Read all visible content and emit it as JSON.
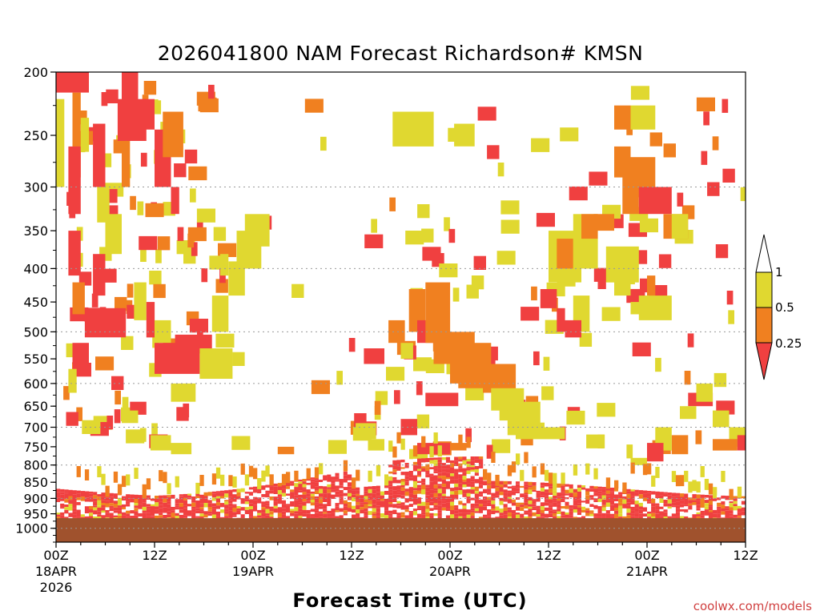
{
  "chart_data": {
    "type": "heatmap",
    "title": "2026041800 NAM Forecast Richardson# KMSN",
    "xlabel": "Forecast Time (UTC)",
    "ylabel": "Pressure (hPa)",
    "xlim_hours": [
      0,
      84
    ],
    "ylim_hpa": [
      200,
      1050
    ],
    "y_scale": "log",
    "y_ticks": [
      200,
      250,
      300,
      350,
      400,
      450,
      500,
      550,
      600,
      650,
      700,
      750,
      800,
      850,
      900,
      950,
      1000
    ],
    "dotted_gridlines_hpa": [
      300,
      400,
      500,
      600,
      700,
      800,
      900,
      1000
    ],
    "x_ticks": [
      {
        "hour": 0,
        "label": "00Z",
        "date": "18APR",
        "year": "2026"
      },
      {
        "hour": 12,
        "label": "12Z",
        "date": "",
        "year": ""
      },
      {
        "hour": 24,
        "label": "00Z",
        "date": "19APR",
        "year": ""
      },
      {
        "hour": 36,
        "label": "12Z",
        "date": "",
        "year": ""
      },
      {
        "hour": 48,
        "label": "00Z",
        "date": "20APR",
        "year": ""
      },
      {
        "hour": 60,
        "label": "12Z",
        "date": "",
        "year": ""
      },
      {
        "hour": 72,
        "label": "00Z",
        "date": "21APR",
        "year": ""
      },
      {
        "hour": 84,
        "label": "12Z",
        "date": "",
        "year": ""
      }
    ],
    "color_levels": [
      {
        "range": "< 0.25",
        "color": "#f04040"
      },
      {
        "range": "0.25 - 0.5",
        "color": "#f08020"
      },
      {
        "range": "0.5 - 1",
        "color": "#e0d830"
      },
      {
        "range": "> 1",
        "color": "#ffffff"
      }
    ],
    "colorbar_labels": [
      "1",
      "0.5",
      "0.25"
    ],
    "ground_color": "#a0522d",
    "ground_top_hpa": 965,
    "cells": [
      {
        "t": [
          0,
          4
        ],
        "p": [
          200,
          215
        ],
        "cls": 0
      },
      {
        "t": [
          8,
          10
        ],
        "p": [
          200,
          225
        ],
        "cls": 0
      },
      {
        "t": [
          2,
          3
        ],
        "p": [
          215,
          290
        ],
        "cls": 1
      },
      {
        "t": [
          0,
          1
        ],
        "p": [
          220,
          300
        ],
        "cls": 2
      },
      {
        "t": [
          1.5,
          3
        ],
        "p": [
          260,
          330
        ],
        "cls": 0
      },
      {
        "t": [
          3,
          4
        ],
        "p": [
          235,
          265
        ],
        "cls": 2
      },
      {
        "t": [
          4.5,
          6
        ],
        "p": [
          240,
          300
        ],
        "cls": 0
      },
      {
        "t": [
          5,
          6.5
        ],
        "p": [
          300,
          340
        ],
        "cls": 2
      },
      {
        "t": [
          7.5,
          11
        ],
        "p": [
          220,
          255
        ],
        "cls": 0
      },
      {
        "t": [
          8,
          9
        ],
        "p": [
          255,
          300
        ],
        "cls": 1
      },
      {
        "t": [
          10.5,
          12
        ],
        "p": [
          220,
          245
        ],
        "cls": 0
      },
      {
        "t": [
          12,
          14
        ],
        "p": [
          245,
          300
        ],
        "cls": 0
      },
      {
        "t": [
          13,
          15.5
        ],
        "p": [
          230,
          270
        ],
        "cls": 1
      },
      {
        "t": [
          14,
          15
        ],
        "p": [
          300,
          330
        ],
        "cls": 0
      },
      {
        "t": [
          1.5,
          3
        ],
        "p": [
          350,
          410
        ],
        "cls": 0
      },
      {
        "t": [
          2,
          3.5
        ],
        "p": [
          420,
          470
        ],
        "cls": 1
      },
      {
        "t": [
          3.5,
          8.5
        ],
        "p": [
          460,
          510
        ],
        "cls": 0
      },
      {
        "t": [
          4.5,
          6
        ],
        "p": [
          380,
          440
        ],
        "cls": 0
      },
      {
        "t": [
          6,
          8
        ],
        "p": [
          330,
          380
        ],
        "cls": 2
      },
      {
        "t": [
          2,
          4
        ],
        "p": [
          520,
          560
        ],
        "cls": 0
      },
      {
        "t": [
          1.5,
          2.5
        ],
        "p": [
          570,
          620
        ],
        "cls": 2
      },
      {
        "t": [
          9.5,
          11
        ],
        "p": [
          420,
          480
        ],
        "cls": 2
      },
      {
        "t": [
          11,
          12
        ],
        "p": [
          450,
          510
        ],
        "cls": 0
      },
      {
        "t": [
          12,
          14
        ],
        "p": [
          480,
          520
        ],
        "cls": 2
      },
      {
        "t": [
          12,
          17.5
        ],
        "p": [
          520,
          580
        ],
        "cls": 0
      },
      {
        "t": [
          14.5,
          19
        ],
        "p": [
          505,
          540
        ],
        "cls": 0
      },
      {
        "t": [
          17.5,
          21.5
        ],
        "p": [
          530,
          590
        ],
        "cls": 2
      },
      {
        "t": [
          19,
          21
        ],
        "p": [
          440,
          500
        ],
        "cls": 2
      },
      {
        "t": [
          21,
          23
        ],
        "p": [
          390,
          440
        ],
        "cls": 2
      },
      {
        "t": [
          22,
          25
        ],
        "p": [
          350,
          400
        ],
        "cls": 2
      },
      {
        "t": [
          23,
          26
        ],
        "p": [
          330,
          370
        ],
        "cls": 2
      },
      {
        "t": [
          20,
          21
        ],
        "p": [
          380,
          410
        ],
        "cls": 2
      },
      {
        "t": [
          14,
          17
        ],
        "p": [
          600,
          640
        ],
        "cls": 2
      },
      {
        "t": [
          9,
          11
        ],
        "p": [
          640,
          670
        ],
        "cls": 0
      },
      {
        "t": [
          8,
          10
        ],
        "p": [
          660,
          690
        ],
        "cls": 2
      },
      {
        "t": [
          11.5,
          14
        ],
        "p": [
          720,
          760
        ],
        "cls": 2
      },
      {
        "t": [
          14,
          16.5
        ],
        "p": [
          740,
          770
        ],
        "cls": 2
      },
      {
        "t": [
          27,
          29
        ],
        "p": [
          750,
          770
        ],
        "cls": 1
      },
      {
        "t": [
          41,
          46
        ],
        "p": [
          230,
          260
        ],
        "cls": 2
      },
      {
        "t": [
          48.5,
          51
        ],
        "p": [
          240,
          260
        ],
        "cls": 2
      },
      {
        "t": [
          37.5,
          40
        ],
        "p": [
          530,
          560
        ],
        "cls": 0
      },
      {
        "t": [
          40.5,
          42.5
        ],
        "p": [
          480,
          520
        ],
        "cls": 1
      },
      {
        "t": [
          42,
          43.5
        ],
        "p": [
          520,
          550
        ],
        "cls": 2
      },
      {
        "t": [
          43,
          45
        ],
        "p": [
          430,
          500
        ],
        "cls": 1
      },
      {
        "t": [
          44,
          46
        ],
        "p": [
          480,
          520
        ],
        "cls": 0
      },
      {
        "t": [
          45,
          48
        ],
        "p": [
          420,
          520
        ],
        "cls": 1
      },
      {
        "t": [
          46,
          51
        ],
        "p": [
          500,
          560
        ],
        "cls": 1
      },
      {
        "t": [
          48,
          53
        ],
        "p": [
          520,
          600
        ],
        "cls": 1
      },
      {
        "t": [
          49,
          56
        ],
        "p": [
          560,
          610
        ],
        "cls": 1
      },
      {
        "t": [
          52,
          56
        ],
        "p": [
          560,
          620
        ],
        "cls": 1
      },
      {
        "t": [
          53,
          57
        ],
        "p": [
          610,
          660
        ],
        "cls": 2
      },
      {
        "t": [
          55,
          59
        ],
        "p": [
          640,
          720
        ],
        "cls": 2
      },
      {
        "t": [
          56,
          62
        ],
        "p": [
          700,
          730
        ],
        "cls": 2
      },
      {
        "t": [
          36.5,
          39
        ],
        "p": [
          690,
          730
        ],
        "cls": 2
      },
      {
        "t": [
          38,
          40
        ],
        "p": [
          730,
          760
        ],
        "cls": 2
      },
      {
        "t": [
          42,
          44
        ],
        "p": [
          680,
          720
        ],
        "cls": 0
      },
      {
        "t": [
          44,
          48
        ],
        "p": [
          740,
          770
        ],
        "cls": 0
      },
      {
        "t": [
          45,
          49
        ],
        "p": [
          620,
          650
        ],
        "cls": 0
      },
      {
        "t": [
          48,
          50
        ],
        "p": [
          740,
          760
        ],
        "cls": 1
      },
      {
        "t": [
          59,
          61
        ],
        "p": [
          430,
          460
        ],
        "cls": 0
      },
      {
        "t": [
          61,
          62
        ],
        "p": [
          460,
          500
        ],
        "cls": 0
      },
      {
        "t": [
          60,
          64
        ],
        "p": [
          350,
          420
        ],
        "cls": 2
      },
      {
        "t": [
          61,
          63
        ],
        "p": [
          360,
          400
        ],
        "cls": 1
      },
      {
        "t": [
          63,
          66
        ],
        "p": [
          330,
          400
        ],
        "cls": 2
      },
      {
        "t": [
          63,
          65
        ],
        "p": [
          440,
          500
        ],
        "cls": 2
      },
      {
        "t": [
          62,
          64
        ],
        "p": [
          480,
          510
        ],
        "cls": 0
      },
      {
        "t": [
          64,
          66
        ],
        "p": [
          330,
          360
        ],
        "cls": 1
      },
      {
        "t": [
          65.5,
          68
        ],
        "p": [
          330,
          350
        ],
        "cls": 1
      },
      {
        "t": [
          66,
          67
        ],
        "p": [
          400,
          430
        ],
        "cls": 0
      },
      {
        "t": [
          68,
          70
        ],
        "p": [
          410,
          440
        ],
        "cls": 2
      },
      {
        "t": [
          67,
          71
        ],
        "p": [
          370,
          420
        ],
        "cls": 2
      },
      {
        "t": [
          68,
          70
        ],
        "p": [
          225,
          245
        ],
        "cls": 1
      },
      {
        "t": [
          70,
          73
        ],
        "p": [
          225,
          245
        ],
        "cls": 2
      },
      {
        "t": [
          68,
          70
        ],
        "p": [
          260,
          290
        ],
        "cls": 1
      },
      {
        "t": [
          69,
          71
        ],
        "p": [
          290,
          330
        ],
        "cls": 1
      },
      {
        "t": [
          70,
          73
        ],
        "p": [
          270,
          300
        ],
        "cls": 1
      },
      {
        "t": [
          71,
          75
        ],
        "p": [
          300,
          330
        ],
        "cls": 0
      },
      {
        "t": [
          74,
          77
        ],
        "p": [
          330,
          360
        ],
        "cls": 1
      },
      {
        "t": [
          72,
          73
        ],
        "p": [
          410,
          440
        ],
        "cls": 1
      },
      {
        "t": [
          71,
          75
        ],
        "p": [
          440,
          480
        ],
        "cls": 2
      },
      {
        "t": [
          70,
          72
        ],
        "p": [
          450,
          470
        ],
        "cls": 2
      },
      {
        "t": [
          75,
          77
        ],
        "p": [
          330,
          360
        ],
        "cls": 2
      },
      {
        "t": [
          77,
          80
        ],
        "p": [
          620,
          650
        ],
        "cls": 0
      },
      {
        "t": [
          76,
          78
        ],
        "p": [
          650,
          680
        ],
        "cls": 2
      },
      {
        "t": [
          78,
          80
        ],
        "p": [
          600,
          640
        ],
        "cls": 2
      },
      {
        "t": [
          80,
          82
        ],
        "p": [
          660,
          700
        ],
        "cls": 2
      },
      {
        "t": [
          82,
          84
        ],
        "p": [
          700,
          750
        ],
        "cls": 2
      },
      {
        "t": [
          80,
          83
        ],
        "p": [
          730,
          760
        ],
        "cls": 1
      },
      {
        "t": [
          83,
          84
        ],
        "p": [
          720,
          760
        ],
        "cls": 0
      },
      {
        "t": [
          75,
          77
        ],
        "p": [
          720,
          770
        ],
        "cls": 1
      },
      {
        "t": [
          73,
          75
        ],
        "p": [
          700,
          760
        ],
        "cls": 2
      },
      {
        "t": [
          72,
          74
        ],
        "p": [
          740,
          790
        ],
        "cls": 0
      },
      {
        "t": [
          70,
          72
        ],
        "p": [
          780,
          800
        ],
        "cls": 2
      }
    ],
    "scatter_seed": 7,
    "note": "Values read approximately from the figure; scattered small cells are generated procedurally from the seed."
  },
  "footer": {
    "credit": "coolwx.com/models"
  }
}
